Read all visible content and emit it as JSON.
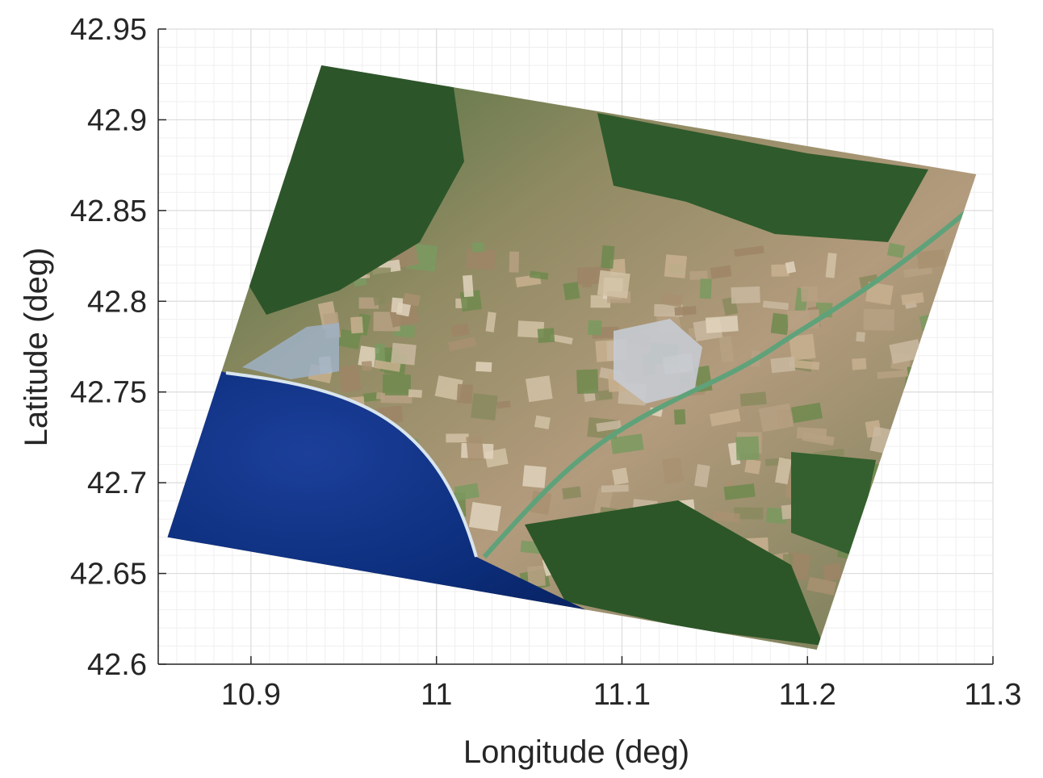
{
  "chart_data": {
    "type": "map",
    "xlabel": "Longitude (deg)",
    "ylabel": "Latitude (deg)",
    "xlim": [
      10.85,
      11.3
    ],
    "ylim": [
      42.6,
      42.95
    ],
    "xticks": [
      10.9,
      11,
      11.1,
      11.2,
      11.3
    ],
    "xtick_labels": [
      "10.9",
      "11",
      "11.1",
      "11.2",
      "11.3"
    ],
    "yticks": [
      42.6,
      42.65,
      42.7,
      42.75,
      42.8,
      42.85,
      42.9,
      42.95
    ],
    "ytick_labels": [
      "42.6",
      "42.65",
      "42.7",
      "42.75",
      "42.8",
      "42.85",
      "42.9",
      "42.95"
    ],
    "grid": true,
    "minor_grid": true,
    "image_footprint": [
      {
        "lon": 10.938,
        "lat": 42.93
      },
      {
        "lon": 11.291,
        "lat": 42.87
      },
      {
        "lon": 11.205,
        "lat": 42.608
      },
      {
        "lon": 10.855,
        "lat": 42.67
      }
    ],
    "image_content": {
      "sea_color": "#0b2d7a",
      "forest_color": "#2f5a2c",
      "farmland_color": "#b49a7c",
      "urban_color": "#c9ced6"
    }
  }
}
